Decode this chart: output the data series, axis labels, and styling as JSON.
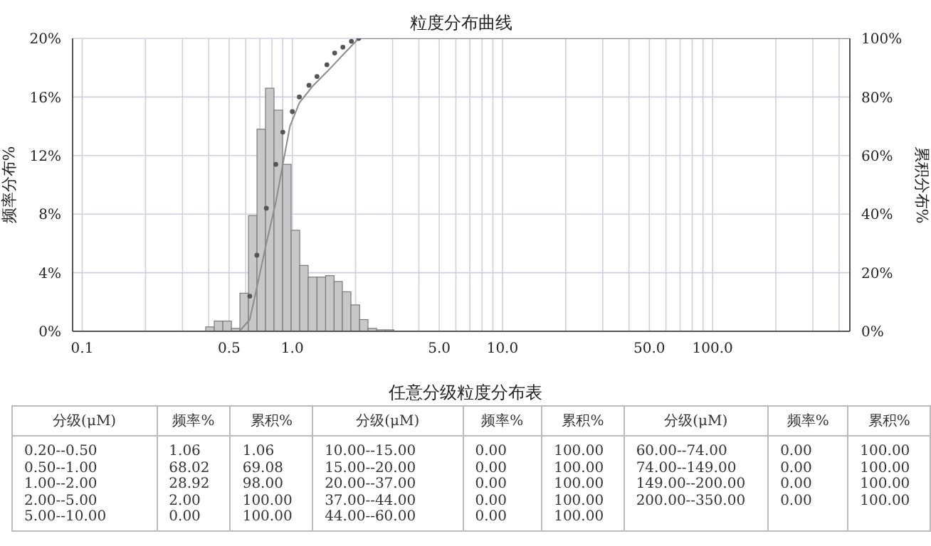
{
  "chart_data": {
    "type": "histogram",
    "title": "粒度分布曲线",
    "ylabel": "频率分布%",
    "y2label": "累积分布%",
    "bins": [
      0.387,
      0.425,
      0.467,
      0.513,
      0.563,
      0.618,
      0.679,
      0.745,
      0.818,
      0.899,
      0.987,
      1.084,
      1.19,
      1.31,
      1.44,
      1.58,
      1.73,
      1.9,
      2.09,
      2.29,
      2.52,
      2.77,
      3.04
    ],
    "values": [
      0.3,
      0.7,
      0.7,
      0.2,
      2.6,
      7.9,
      13.8,
      16.6,
      15.1,
      11.4,
      6.9,
      4.5,
      3.7,
      3.7,
      3.8,
      3.4,
      2.7,
      1.8,
      0.8,
      0.2,
      0.1,
      0.1
    ],
    "color": "#c8c8c8",
    "series": [
      {
        "type": "line",
        "axis": "y2",
        "color": "#8c8c8c",
        "line_style": "solid",
        "marker": "none",
        "x": [
          0.2,
          0.56,
          0.627,
          0.678,
          0.752,
          0.834,
          0.901,
          0.974,
          1.08,
          1.26,
          1.48,
          1.72,
          2.07,
          445
        ],
        "values": [
          0,
          0,
          4,
          15,
          30,
          44,
          57,
          70,
          78,
          84,
          89,
          94,
          100,
          100
        ]
      },
      {
        "type": "scatter",
        "axis": "y2",
        "color": "#555555",
        "marker": "circle",
        "x": [
          0.627,
          0.678,
          0.752,
          0.834,
          0.901,
          1.0,
          1.08,
          1.2,
          1.31,
          1.46,
          1.59,
          1.74,
          1.91,
          2.07
        ],
        "values": [
          12,
          26,
          42,
          57,
          68,
          75,
          80,
          84,
          87,
          91,
          95,
          97,
          99,
          100
        ]
      }
    ],
    "log": "x",
    "xlim": [
      0.09,
      450
    ],
    "xticks": [
      {
        "value": 0.1,
        "label": "0.1"
      },
      {
        "value": 0.2,
        "label": null
      },
      {
        "value": 0.3,
        "label": null
      },
      {
        "value": 0.4,
        "label": null
      },
      {
        "value": 0.5,
        "label": "0.5"
      },
      {
        "value": 0.6,
        "label": null
      },
      {
        "value": 0.7,
        "label": null
      },
      {
        "value": 0.8,
        "label": null
      },
      {
        "value": 0.9,
        "label": null
      },
      {
        "value": 1,
        "label": "1.0"
      },
      {
        "value": 2,
        "label": null
      },
      {
        "value": 3,
        "label": null
      },
      {
        "value": 4,
        "label": null
      },
      {
        "value": 5,
        "label": "5.0"
      },
      {
        "value": 6,
        "label": null
      },
      {
        "value": 7,
        "label": null
      },
      {
        "value": 8,
        "label": null
      },
      {
        "value": 9,
        "label": null
      },
      {
        "value": 10,
        "label": "10.0"
      },
      {
        "value": 20,
        "label": null
      },
      {
        "value": 30,
        "label": null
      },
      {
        "value": 40,
        "label": null
      },
      {
        "value": 50,
        "label": "50.0"
      },
      {
        "value": 60,
        "label": null
      },
      {
        "value": 70,
        "label": null
      },
      {
        "value": 80,
        "label": null
      },
      {
        "value": 90,
        "label": null
      },
      {
        "value": 100,
        "label": "100.0"
      },
      {
        "value": 200,
        "label": null
      },
      {
        "value": 300,
        "label": null
      },
      {
        "value": 400,
        "label": null
      }
    ],
    "ylim": [
      0,
      20
    ],
    "yticks": [
      {
        "value": 0,
        "label": "0%"
      },
      {
        "value": 4,
        "label": "4%"
      },
      {
        "value": 8,
        "label": "8%"
      },
      {
        "value": 12,
        "label": "12%"
      },
      {
        "value": 16,
        "label": "16%"
      },
      {
        "value": 20,
        "label": "20%"
      }
    ],
    "y2lim": [
      0,
      100
    ],
    "y2ticks": [
      {
        "value": 0,
        "label": "0%"
      },
      {
        "value": 20,
        "label": "20%"
      },
      {
        "value": 40,
        "label": "40%"
      },
      {
        "value": 60,
        "label": "60%"
      },
      {
        "value": 80,
        "label": "80%"
      },
      {
        "value": 100,
        "label": "100%"
      }
    ],
    "grid": true,
    "annotations": [
      "任意分级粒度分布表",
      "分级(μM)",
      "频率%",
      "累积%",
      "分级(μM)",
      "频率%",
      "累积%",
      "分级(μM)",
      "频率%",
      "累积%",
      "0.20--0.50\n0.50--1.00\n1.00--2.00\n2.00--5.00\n5.00--10.00",
      "1.06\n68.02\n28.92\n2.00\n0.00",
      "1.06\n69.08\n98.00\n100.00\n100.00",
      "10.00--15.00\n15.00--20.00\n20.00--37.00\n37.00--44.00\n44.00--60.00",
      "0.00\n0.00\n0.00\n0.00\n0.00",
      "100.00\n100.00\n100.00\n100.00\n100.00",
      "60.00--74.00\n74.00--149.00\n149.00--200.00\n200.00--350.00",
      "0.00\n0.00\n0.00\n0.00",
      "100.00\n100.00\n100.00\n100.00"
    ]
  }
}
